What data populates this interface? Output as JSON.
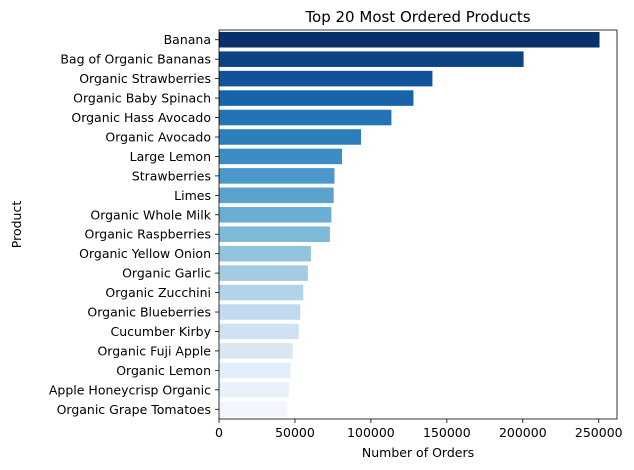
{
  "chart_data": {
    "type": "bar",
    "orientation": "horizontal",
    "title": "Top 20 Most Ordered Products",
    "xlabel": "Number of Orders",
    "ylabel": "Product",
    "xlim": [
      0,
      262000
    ],
    "xticks": [
      0,
      50000,
      100000,
      150000,
      200000,
      250000
    ],
    "xtick_labels": [
      "0",
      "50000",
      "100000",
      "150000",
      "200000",
      "250000"
    ],
    "grid": false,
    "colormap": "Blues_r",
    "categories": [
      "Banana",
      "Bag of Organic Bananas",
      "Organic Strawberries",
      "Organic Baby Spinach",
      "Organic Hass Avocado",
      "Organic Avocado",
      "Large Lemon",
      "Strawberries",
      "Limes",
      "Organic Whole Milk",
      "Organic Raspberries",
      "Organic Yellow Onion",
      "Organic Garlic",
      "Organic Zucchini",
      "Organic Blueberries",
      "Cucumber Kirby",
      "Organic Fuji Apple",
      "Organic Lemon",
      "Apple Honeycrisp Organic",
      "Organic Grape Tomatoes"
    ],
    "values": [
      250500,
      200500,
      140500,
      128000,
      113500,
      93500,
      81000,
      76000,
      75500,
      74000,
      73000,
      60500,
      58500,
      55500,
      53500,
      52500,
      48500,
      47000,
      46000,
      45000
    ],
    "colors": [
      "#08306b",
      "#0b4383",
      "#11539a",
      "#1764ab",
      "#2373b6",
      "#2f7ebc",
      "#3d8dc4",
      "#4a98c9",
      "#5aa1ce",
      "#6aaed6",
      "#7fb9da",
      "#92c4de",
      "#a3cce3",
      "#b3d3e8",
      "#c3daee",
      "#cfe1f2",
      "#d9e7f5",
      "#e1edf8",
      "#e9f2fa",
      "#f1f7fd"
    ]
  }
}
